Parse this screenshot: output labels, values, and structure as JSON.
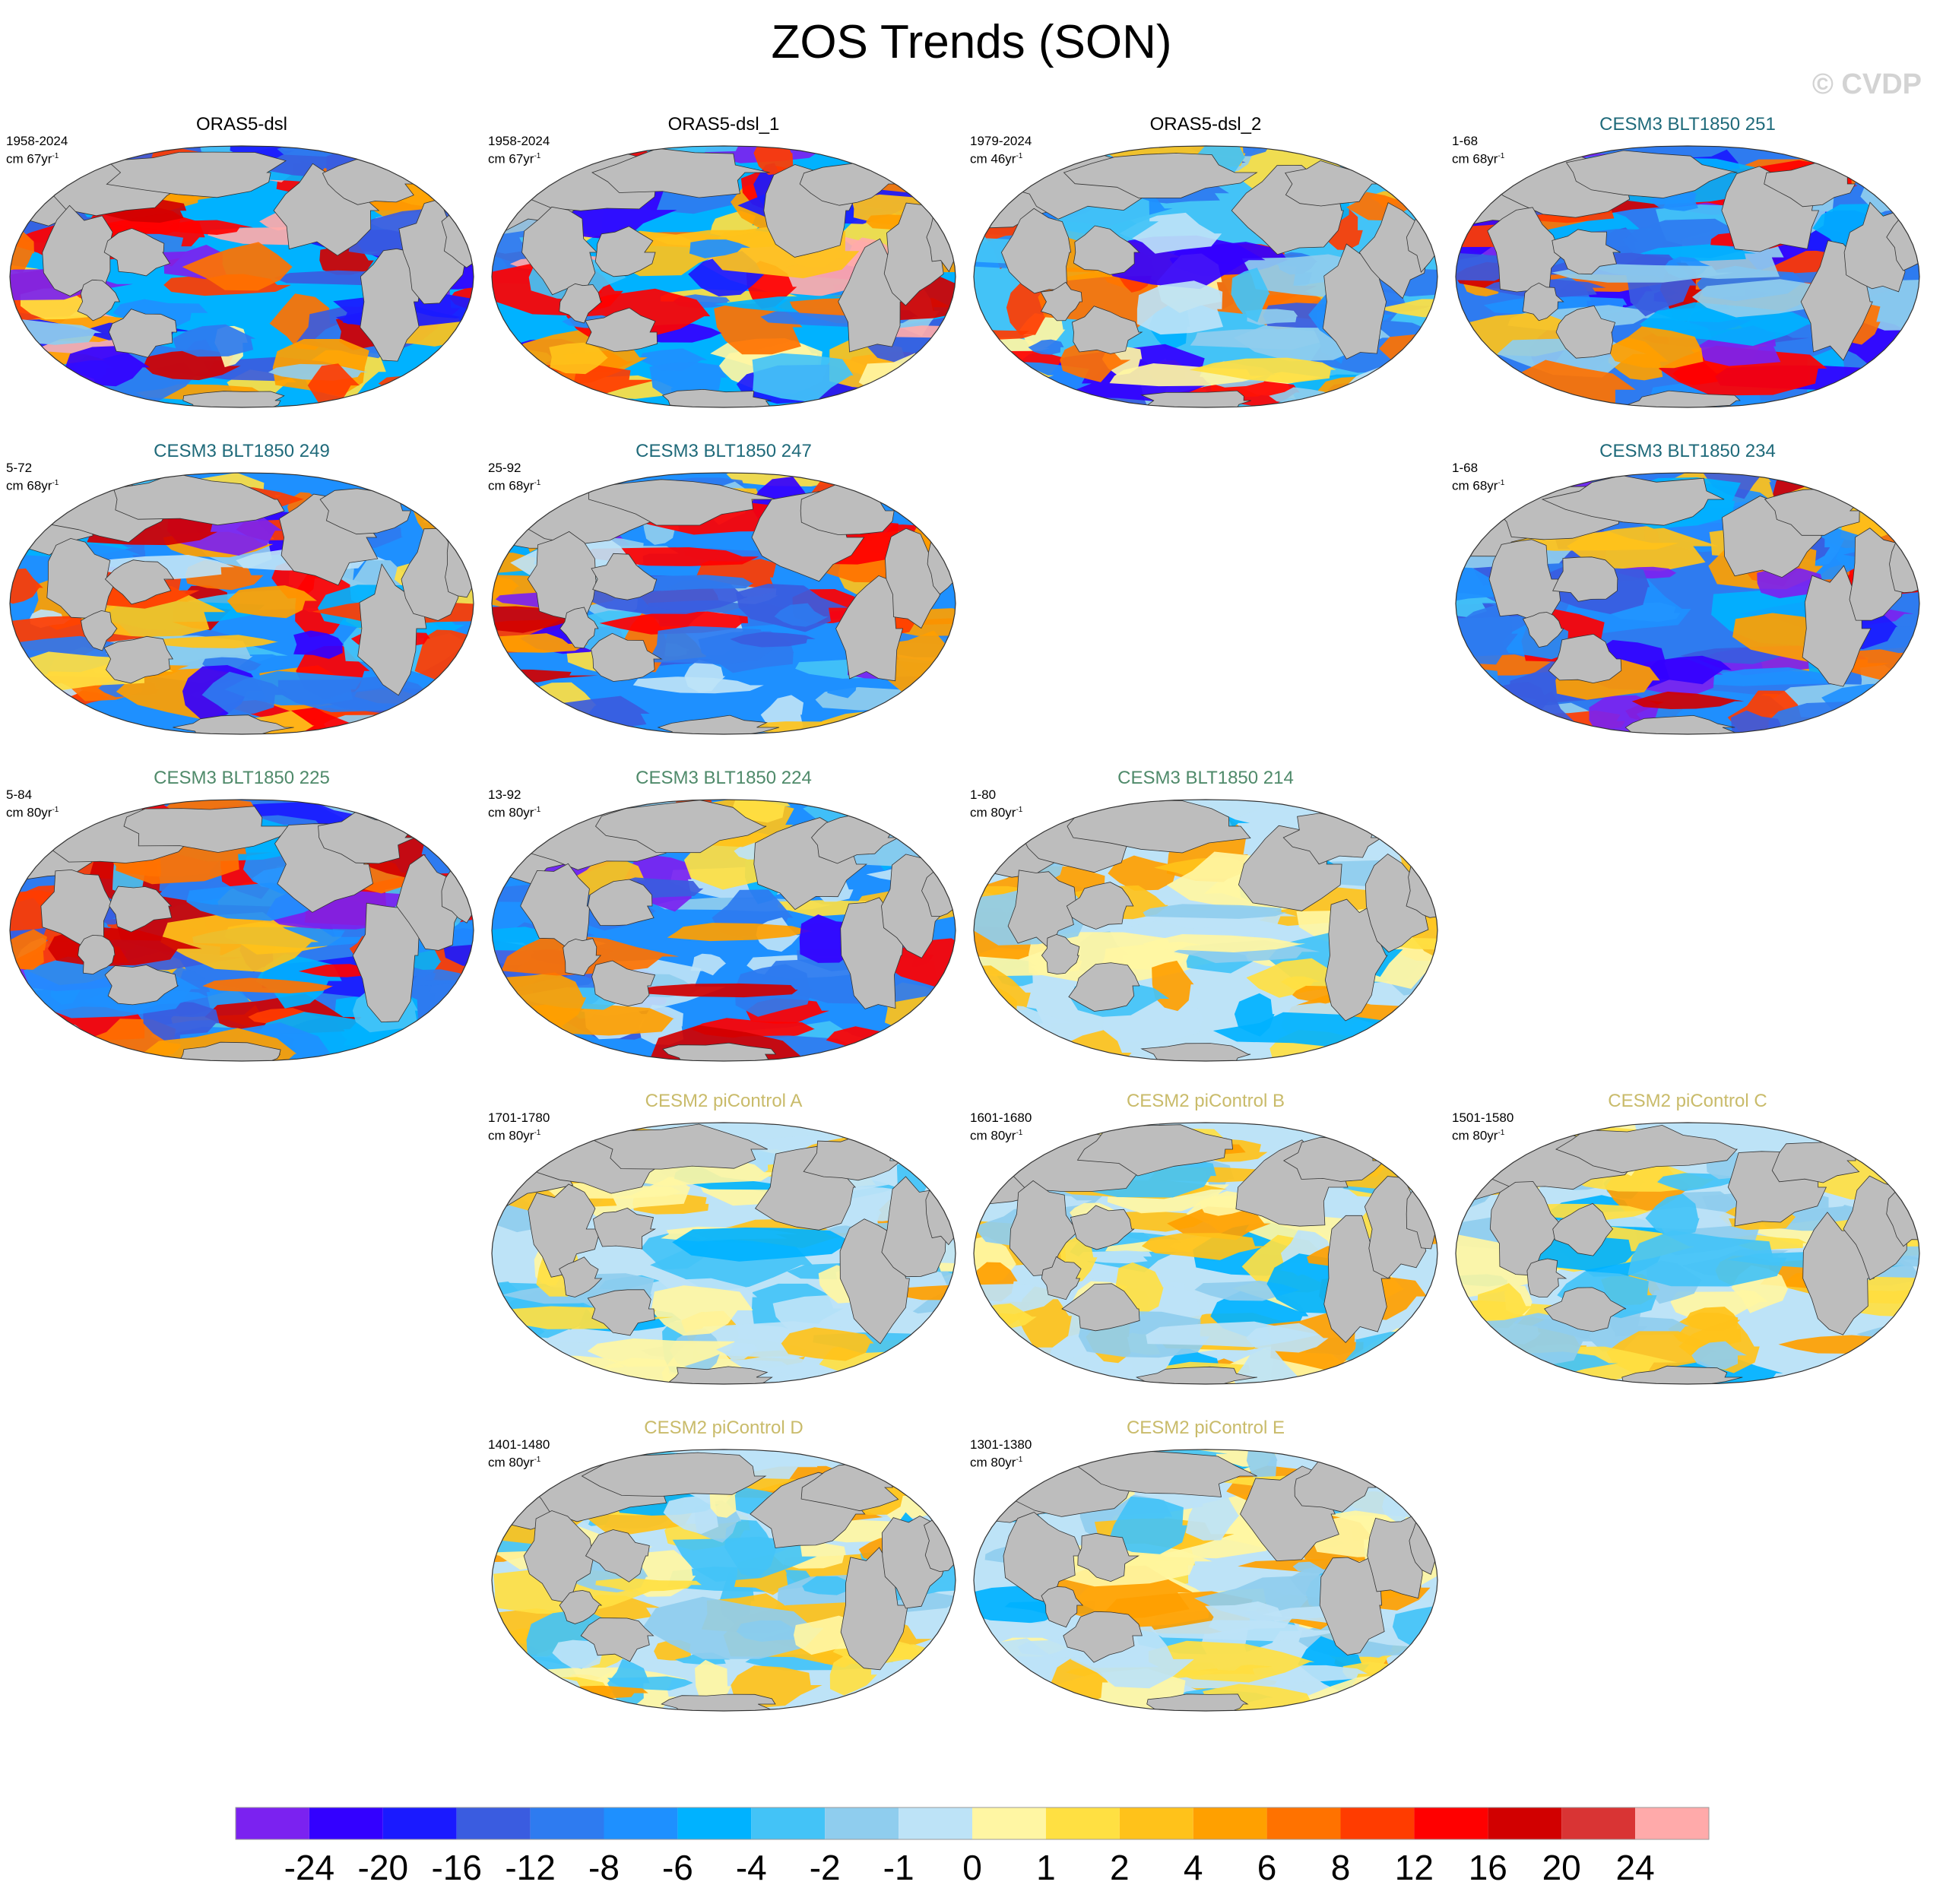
{
  "title": "ZOS Trends (SON)",
  "watermark": "© CVDP",
  "unit_prefix": "cm",
  "unit_suffix": "yr",
  "unit_sup": "-1",
  "colors": {
    "land": "#bdbdbd",
    "title_obs": "#000000",
    "title_teal": "#1f6a7a",
    "title_green": "#4f8a6a",
    "title_khaki": "#c9bb6a"
  },
  "chart_data": {
    "type": "heatmap",
    "projection": "robinson",
    "legend": {
      "placement": "bottom",
      "levels": [
        "-24",
        "-20",
        "-16",
        "-12",
        "-8",
        "-6",
        "-4",
        "-2",
        "-1",
        "0",
        "1",
        "2",
        "4",
        "6",
        "8",
        "12",
        "16",
        "20",
        "24"
      ],
      "colors": [
        "#7b22f0",
        "#3300ff",
        "#1a1aff",
        "#3a5ce0",
        "#2e7bf0",
        "#1e90ff",
        "#00b2ff",
        "#43c3f7",
        "#8fcdee",
        "#bde3f7",
        "#fff6a3",
        "#ffe042",
        "#ffc21a",
        "#ffa000",
        "#ff7200",
        "#ff3c00",
        "#ff0000",
        "#d10000",
        "#d93434",
        "#ffaaaa"
      ]
    },
    "panels": [
      {
        "title": "ORAS5-dsl",
        "period": "1958-2024",
        "trend_span": "67",
        "title_color": "title_obs",
        "style": "obs_a"
      },
      {
        "title": "ORAS5-dsl_1",
        "period": "1958-2024",
        "trend_span": "67",
        "title_color": "title_obs",
        "style": "obs_a"
      },
      {
        "title": "ORAS5-dsl_2",
        "period": "1979-2024",
        "trend_span": "46",
        "title_color": "title_obs",
        "style": "obs_b"
      },
      {
        "title": "CESM3 BLT1850 251",
        "period": "1-68",
        "trend_span": "68",
        "title_color": "title_teal",
        "style": "cold"
      },
      {
        "title": "CESM3 BLT1850 249",
        "period": "5-72",
        "trend_span": "68",
        "title_color": "title_teal",
        "style": "mixed"
      },
      {
        "title": "CESM3 BLT1850 247",
        "period": "25-92",
        "trend_span": "68",
        "title_color": "title_teal",
        "style": "mixed"
      },
      {
        "title": "CESM3 BLT1850 234",
        "period": "1-68",
        "trend_span": "68",
        "title_color": "title_teal",
        "style": "cold"
      },
      {
        "title": "CESM3 BLT1850 225",
        "period": "5-84",
        "trend_span": "80",
        "title_color": "title_green",
        "style": "cold"
      },
      {
        "title": "CESM3 BLT1850 224",
        "period": "13-92",
        "trend_span": "80",
        "title_color": "title_green",
        "style": "mixed"
      },
      {
        "title": "CESM3 BLT1850 214",
        "period": "1-80",
        "trend_span": "80",
        "title_color": "title_green",
        "style": "pale"
      },
      {
        "title": "CESM2 piControl A",
        "period": "1701-1780",
        "trend_span": "80",
        "title_color": "title_khaki",
        "style": "pale"
      },
      {
        "title": "CESM2 piControl B",
        "period": "1601-1680",
        "trend_span": "80",
        "title_color": "title_khaki",
        "style": "pale"
      },
      {
        "title": "CESM2 piControl C",
        "period": "1501-1580",
        "trend_span": "80",
        "title_color": "title_khaki",
        "style": "pale"
      },
      {
        "title": "CESM2 piControl D",
        "period": "1401-1480",
        "trend_span": "80",
        "title_color": "title_khaki",
        "style": "pale"
      },
      {
        "title": "CESM2 piControl E",
        "period": "1301-1380",
        "trend_span": "80",
        "title_color": "title_khaki",
        "style": "pale"
      }
    ]
  }
}
